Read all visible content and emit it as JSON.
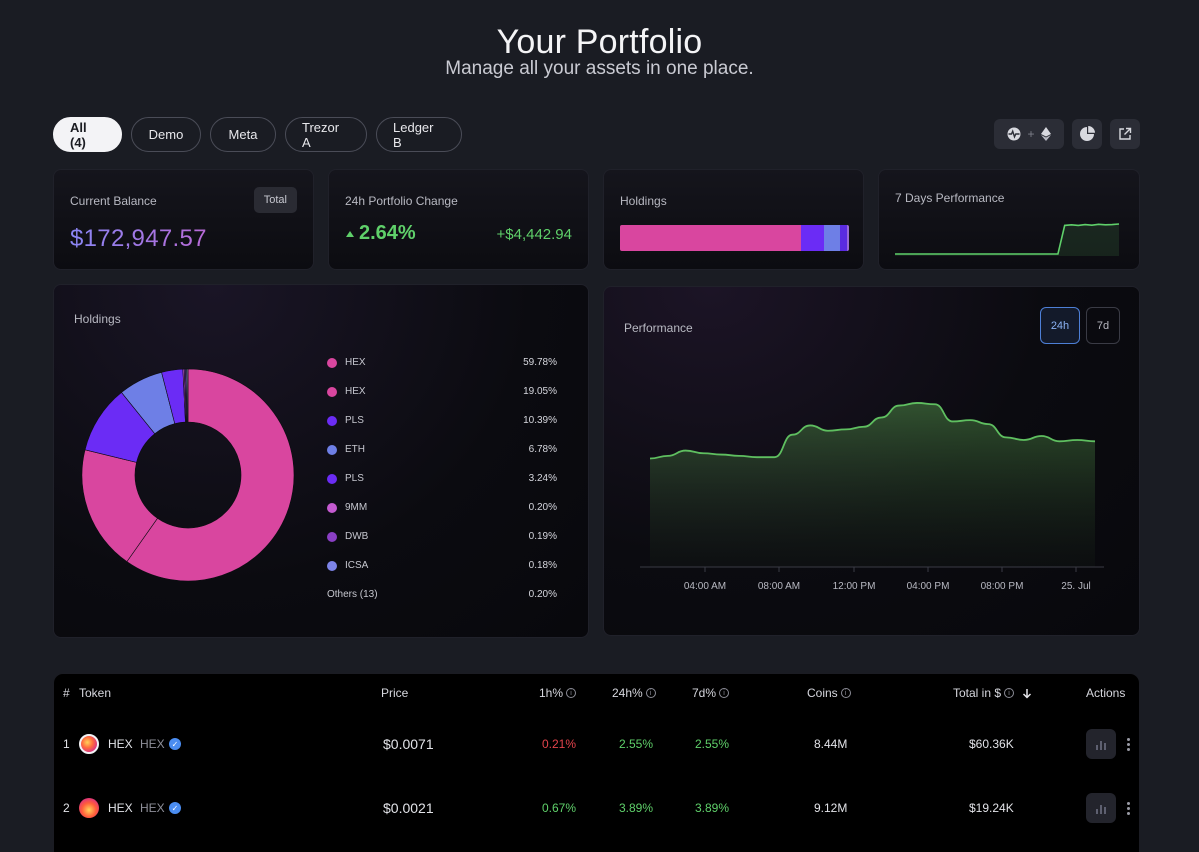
{
  "header": {
    "title": "Your Portfolio",
    "subtitle": "Manage all your assets in one place."
  },
  "filters": [
    "All (4)",
    "Demo",
    "Meta",
    "Trezor A",
    "Ledger B"
  ],
  "toolbar": {
    "connect_icons": [
      "pulsechain-icon",
      "plus-icon",
      "ethereum-icon"
    ],
    "plus_label": "+",
    "pie_icon": "pie-chart-icon",
    "export_icon": "external-link-icon"
  },
  "summary": {
    "balance": {
      "label": "Current Balance",
      "value": "$172,947.57",
      "badge": "Total"
    },
    "change": {
      "label": "24h Portfolio Change",
      "pct": "2.64%",
      "abs": "+$4,442.94",
      "color": "#5fd06a"
    },
    "holdings": {
      "label": "Holdings"
    },
    "perf7d": {
      "label": "7 Days Performance"
    }
  },
  "holdings_card": {
    "label": "Holdings",
    "items": [
      {
        "name": "HEX",
        "pct": "59.78%",
        "value": 59.78,
        "color": "#d9469f"
      },
      {
        "name": "HEX",
        "pct": "19.05%",
        "value": 19.05,
        "color": "#d9469f"
      },
      {
        "name": "PLS",
        "pct": "10.39%",
        "value": 10.39,
        "color": "#6b2cf5"
      },
      {
        "name": "ETH",
        "pct": "6.78%",
        "value": 6.78,
        "color": "#6e7fe6"
      },
      {
        "name": "PLS",
        "pct": "3.24%",
        "value": 3.24,
        "color": "#6b2cf5"
      },
      {
        "name": "9MM",
        "pct": "0.20%",
        "value": 0.2,
        "color": "#c45ad0"
      },
      {
        "name": "DWB",
        "pct": "0.19%",
        "value": 0.19,
        "color": "#8a3fc4"
      },
      {
        "name": "ICSA",
        "pct": "0.18%",
        "value": 0.18,
        "color": "#7d84e8"
      },
      {
        "name": "Others (13)",
        "pct": "0.20%",
        "value": 0.2,
        "color": ""
      }
    ]
  },
  "performance": {
    "label": "Performance",
    "ranges": [
      "24h",
      "7d"
    ],
    "active_range": "24h",
    "xticks": [
      "04:00 AM",
      "08:00 AM",
      "12:00 PM",
      "04:00 PM",
      "08:00 PM",
      "25. Jul"
    ]
  },
  "chart_data": [
    {
      "type": "pie",
      "title": "Holdings",
      "categories": [
        "HEX",
        "HEX",
        "PLS",
        "ETH",
        "PLS",
        "9MM",
        "DWB",
        "ICSA",
        "Others (13)"
      ],
      "values": [
        59.78,
        19.05,
        10.39,
        6.78,
        3.24,
        0.2,
        0.19,
        0.18,
        0.2
      ]
    },
    {
      "type": "area",
      "title": "Performance",
      "xticks": [
        "04:00 AM",
        "08:00 AM",
        "12:00 PM",
        "04:00 PM",
        "08:00 PM",
        "25. Jul"
      ],
      "grid": false,
      "values": [
        168.2,
        168.4,
        168.8,
        168.6,
        168.5,
        168.4,
        168.3,
        168.3,
        170.0,
        170.7,
        170.3,
        170.4,
        170.6,
        171.3,
        172.2,
        172.4,
        172.3,
        171.0,
        171.1,
        170.8,
        169.8,
        169.6,
        169.9,
        169.5,
        169.6,
        169.5
      ],
      "color": "#5fbf60"
    },
    {
      "type": "line",
      "title": "7 Days Performance",
      "values": [
        0,
        0,
        0,
        0,
        0,
        0,
        0,
        0,
        0,
        0,
        0,
        0,
        0,
        0,
        0,
        0,
        0,
        0,
        0,
        0,
        0,
        0,
        0,
        0,
        0,
        1,
        1.02,
        1.0,
        1.03,
        1.01,
        1.04,
        1.02,
        1.03,
        1.05
      ],
      "color": "#5fd06a"
    },
    {
      "type": "bar",
      "title": "Holdings",
      "orientation": "stacked-horizontal",
      "values": [
        78.83,
        10.39,
        6.78,
        3.24,
        0.77
      ],
      "colors": [
        "#d9469f",
        "#6b2cf5",
        "#6e7fe6",
        "#5a2be0",
        "#9a6ad8"
      ]
    }
  ],
  "table": {
    "headers": [
      "#",
      "Token",
      "Price",
      "1h%",
      "24h%",
      "7d%",
      "Coins",
      "Total in $",
      "Actions"
    ],
    "rows": [
      {
        "rank": "1",
        "name": "HEX",
        "symbol": "HEX",
        "price": "$0.0071",
        "h1": "0.21%",
        "h1_color": "#e2434b",
        "h24": "2.55%",
        "d7": "2.55%",
        "coins": "8.44M",
        "total": "$60.36K"
      },
      {
        "rank": "2",
        "name": "HEX",
        "symbol": "HEX",
        "price": "$0.0021",
        "h1": "0.67%",
        "h1_color": "#5fd06a",
        "h24": "3.89%",
        "d7": "3.89%",
        "coins": "9.12M",
        "total": "$19.24K"
      }
    ],
    "positive_color": "#5fd06a",
    "sort_icon": "arrow-down-icon",
    "info_icon": "info-icon",
    "verified_icon": "verified-check-icon",
    "row_chart_icon": "bar-chart-icon",
    "row_menu_icon": "kebab-menu-icon"
  }
}
